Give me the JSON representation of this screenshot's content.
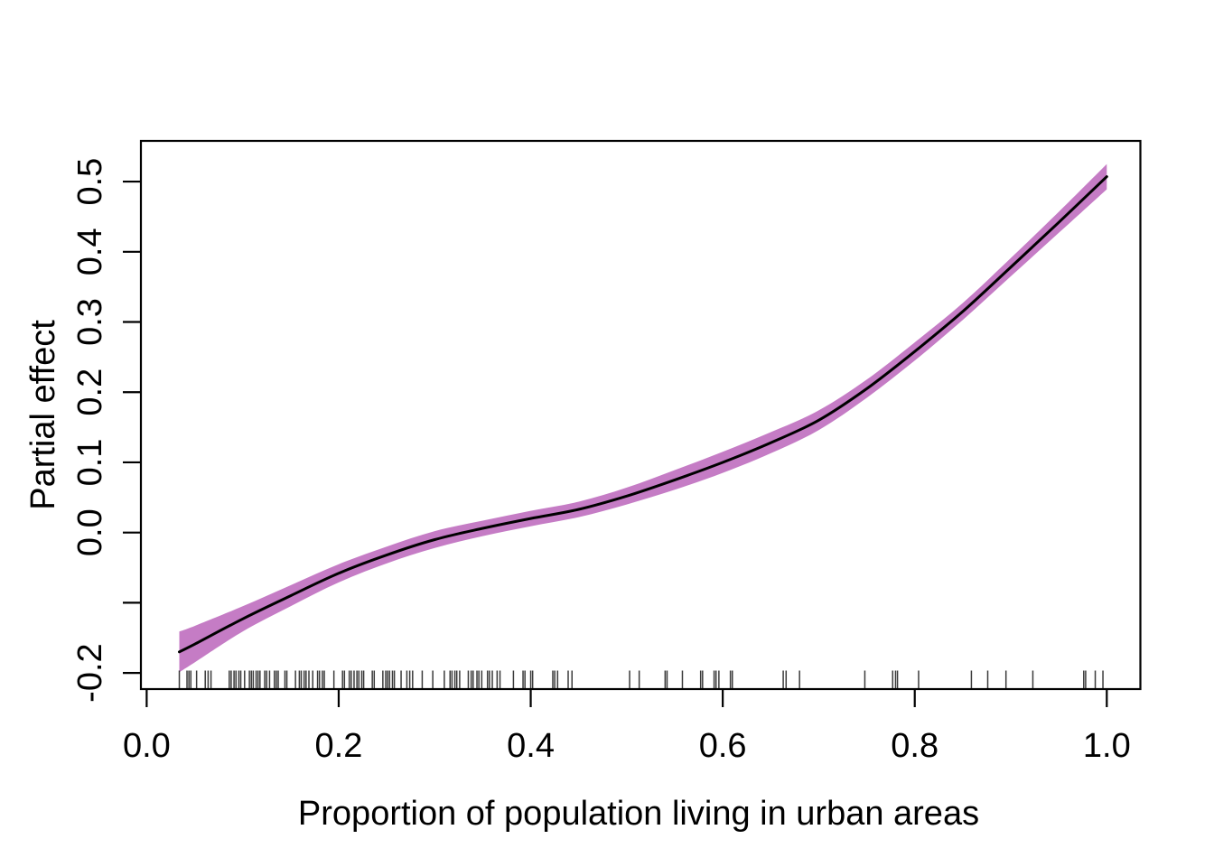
{
  "chart_data": {
    "type": "line",
    "title": "",
    "xlabel": "Proportion of population living in urban areas",
    "ylabel": "Partial effect",
    "xlim": [
      -0.006,
      1.035
    ],
    "ylim": [
      -0.223,
      0.558
    ],
    "grid": false,
    "legend_position": "none",
    "x_ticks": [
      {
        "v": 0.0,
        "label": "0.0"
      },
      {
        "v": 0.2,
        "label": "0.2"
      },
      {
        "v": 0.4,
        "label": "0.4"
      },
      {
        "v": 0.6,
        "label": "0.6"
      },
      {
        "v": 0.8,
        "label": "0.8"
      },
      {
        "v": 1.0,
        "label": "1.0"
      }
    ],
    "y_ticks": [
      {
        "v": -0.2,
        "label": "-0.2"
      },
      {
        "v": -0.1,
        "label": ""
      },
      {
        "v": 0.0,
        "label": "0.0"
      },
      {
        "v": 0.1,
        "label": "0.1"
      },
      {
        "v": 0.2,
        "label": "0.2"
      },
      {
        "v": 0.3,
        "label": "0.3"
      },
      {
        "v": 0.4,
        "label": "0.4"
      },
      {
        "v": 0.5,
        "label": "0.5"
      }
    ],
    "series": [
      {
        "name": "confidence-band",
        "type": "band",
        "color": "#C57CC5",
        "x": [
          0.034,
          0.05,
          0.1,
          0.15,
          0.2,
          0.25,
          0.3,
          0.35,
          0.4,
          0.45,
          0.5,
          0.55,
          0.6,
          0.65,
          0.7,
          0.75,
          0.8,
          0.85,
          0.9,
          0.95,
          1.0
        ],
        "upper": [
          -0.141,
          -0.133,
          -0.105,
          -0.075,
          -0.045,
          -0.02,
          0.002,
          0.017,
          0.031,
          0.044,
          0.064,
          0.089,
          0.115,
          0.143,
          0.174,
          0.218,
          0.271,
          0.327,
          0.391,
          0.457,
          0.525
        ],
        "lower": [
          -0.199,
          -0.185,
          -0.141,
          -0.105,
          -0.071,
          -0.044,
          -0.022,
          -0.005,
          0.009,
          0.022,
          0.04,
          0.061,
          0.085,
          0.113,
          0.146,
          0.192,
          0.245,
          0.303,
          0.365,
          0.427,
          0.489
        ]
      },
      {
        "name": "smooth-fit",
        "type": "line",
        "color": "#000000",
        "x": [
          0.034,
          0.05,
          0.1,
          0.15,
          0.2,
          0.25,
          0.3,
          0.35,
          0.4,
          0.45,
          0.5,
          0.55,
          0.6,
          0.65,
          0.7,
          0.75,
          0.8,
          0.85,
          0.9,
          0.95,
          1.0
        ],
        "y": [
          -0.17,
          -0.159,
          -0.123,
          -0.09,
          -0.058,
          -0.032,
          -0.01,
          0.006,
          0.02,
          0.033,
          0.052,
          0.075,
          0.1,
          0.128,
          0.16,
          0.205,
          0.258,
          0.315,
          0.378,
          0.442,
          0.507
        ]
      }
    ],
    "rug_x": [
      0.034,
      0.042,
      0.044,
      0.046,
      0.052,
      0.061,
      0.064,
      0.067,
      0.086,
      0.088,
      0.091,
      0.093,
      0.096,
      0.098,
      0.102,
      0.107,
      0.109,
      0.111,
      0.114,
      0.116,
      0.118,
      0.123,
      0.125,
      0.128,
      0.133,
      0.135,
      0.137,
      0.144,
      0.146,
      0.155,
      0.159,
      0.161,
      0.164,
      0.166,
      0.169,
      0.173,
      0.178,
      0.18,
      0.183,
      0.185,
      0.195,
      0.204,
      0.206,
      0.211,
      0.213,
      0.216,
      0.219,
      0.221,
      0.224,
      0.226,
      0.235,
      0.237,
      0.246,
      0.249,
      0.251,
      0.253,
      0.256,
      0.258,
      0.265,
      0.271,
      0.274,
      0.277,
      0.287,
      0.298,
      0.31,
      0.316,
      0.318,
      0.321,
      0.323,
      0.326,
      0.335,
      0.338,
      0.34,
      0.344,
      0.346,
      0.349,
      0.355,
      0.357,
      0.36,
      0.365,
      0.368,
      0.382,
      0.392,
      0.394,
      0.4,
      0.402,
      0.423,
      0.425,
      0.428,
      0.439,
      0.443,
      0.503,
      0.513,
      0.54,
      0.542,
      0.558,
      0.577,
      0.579,
      0.591,
      0.593,
      0.596,
      0.608,
      0.61,
      0.663,
      0.666,
      0.68,
      0.748,
      0.777,
      0.78,
      0.782,
      0.804,
      0.859,
      0.876,
      0.895,
      0.923,
      0.976,
      0.978,
      0.988,
      0.996
    ]
  },
  "colors": {
    "background": "#ffffff",
    "axis": "#000000",
    "rug": "#1a1a1a",
    "band": "#C57CC5",
    "fit_line": "#000000"
  }
}
